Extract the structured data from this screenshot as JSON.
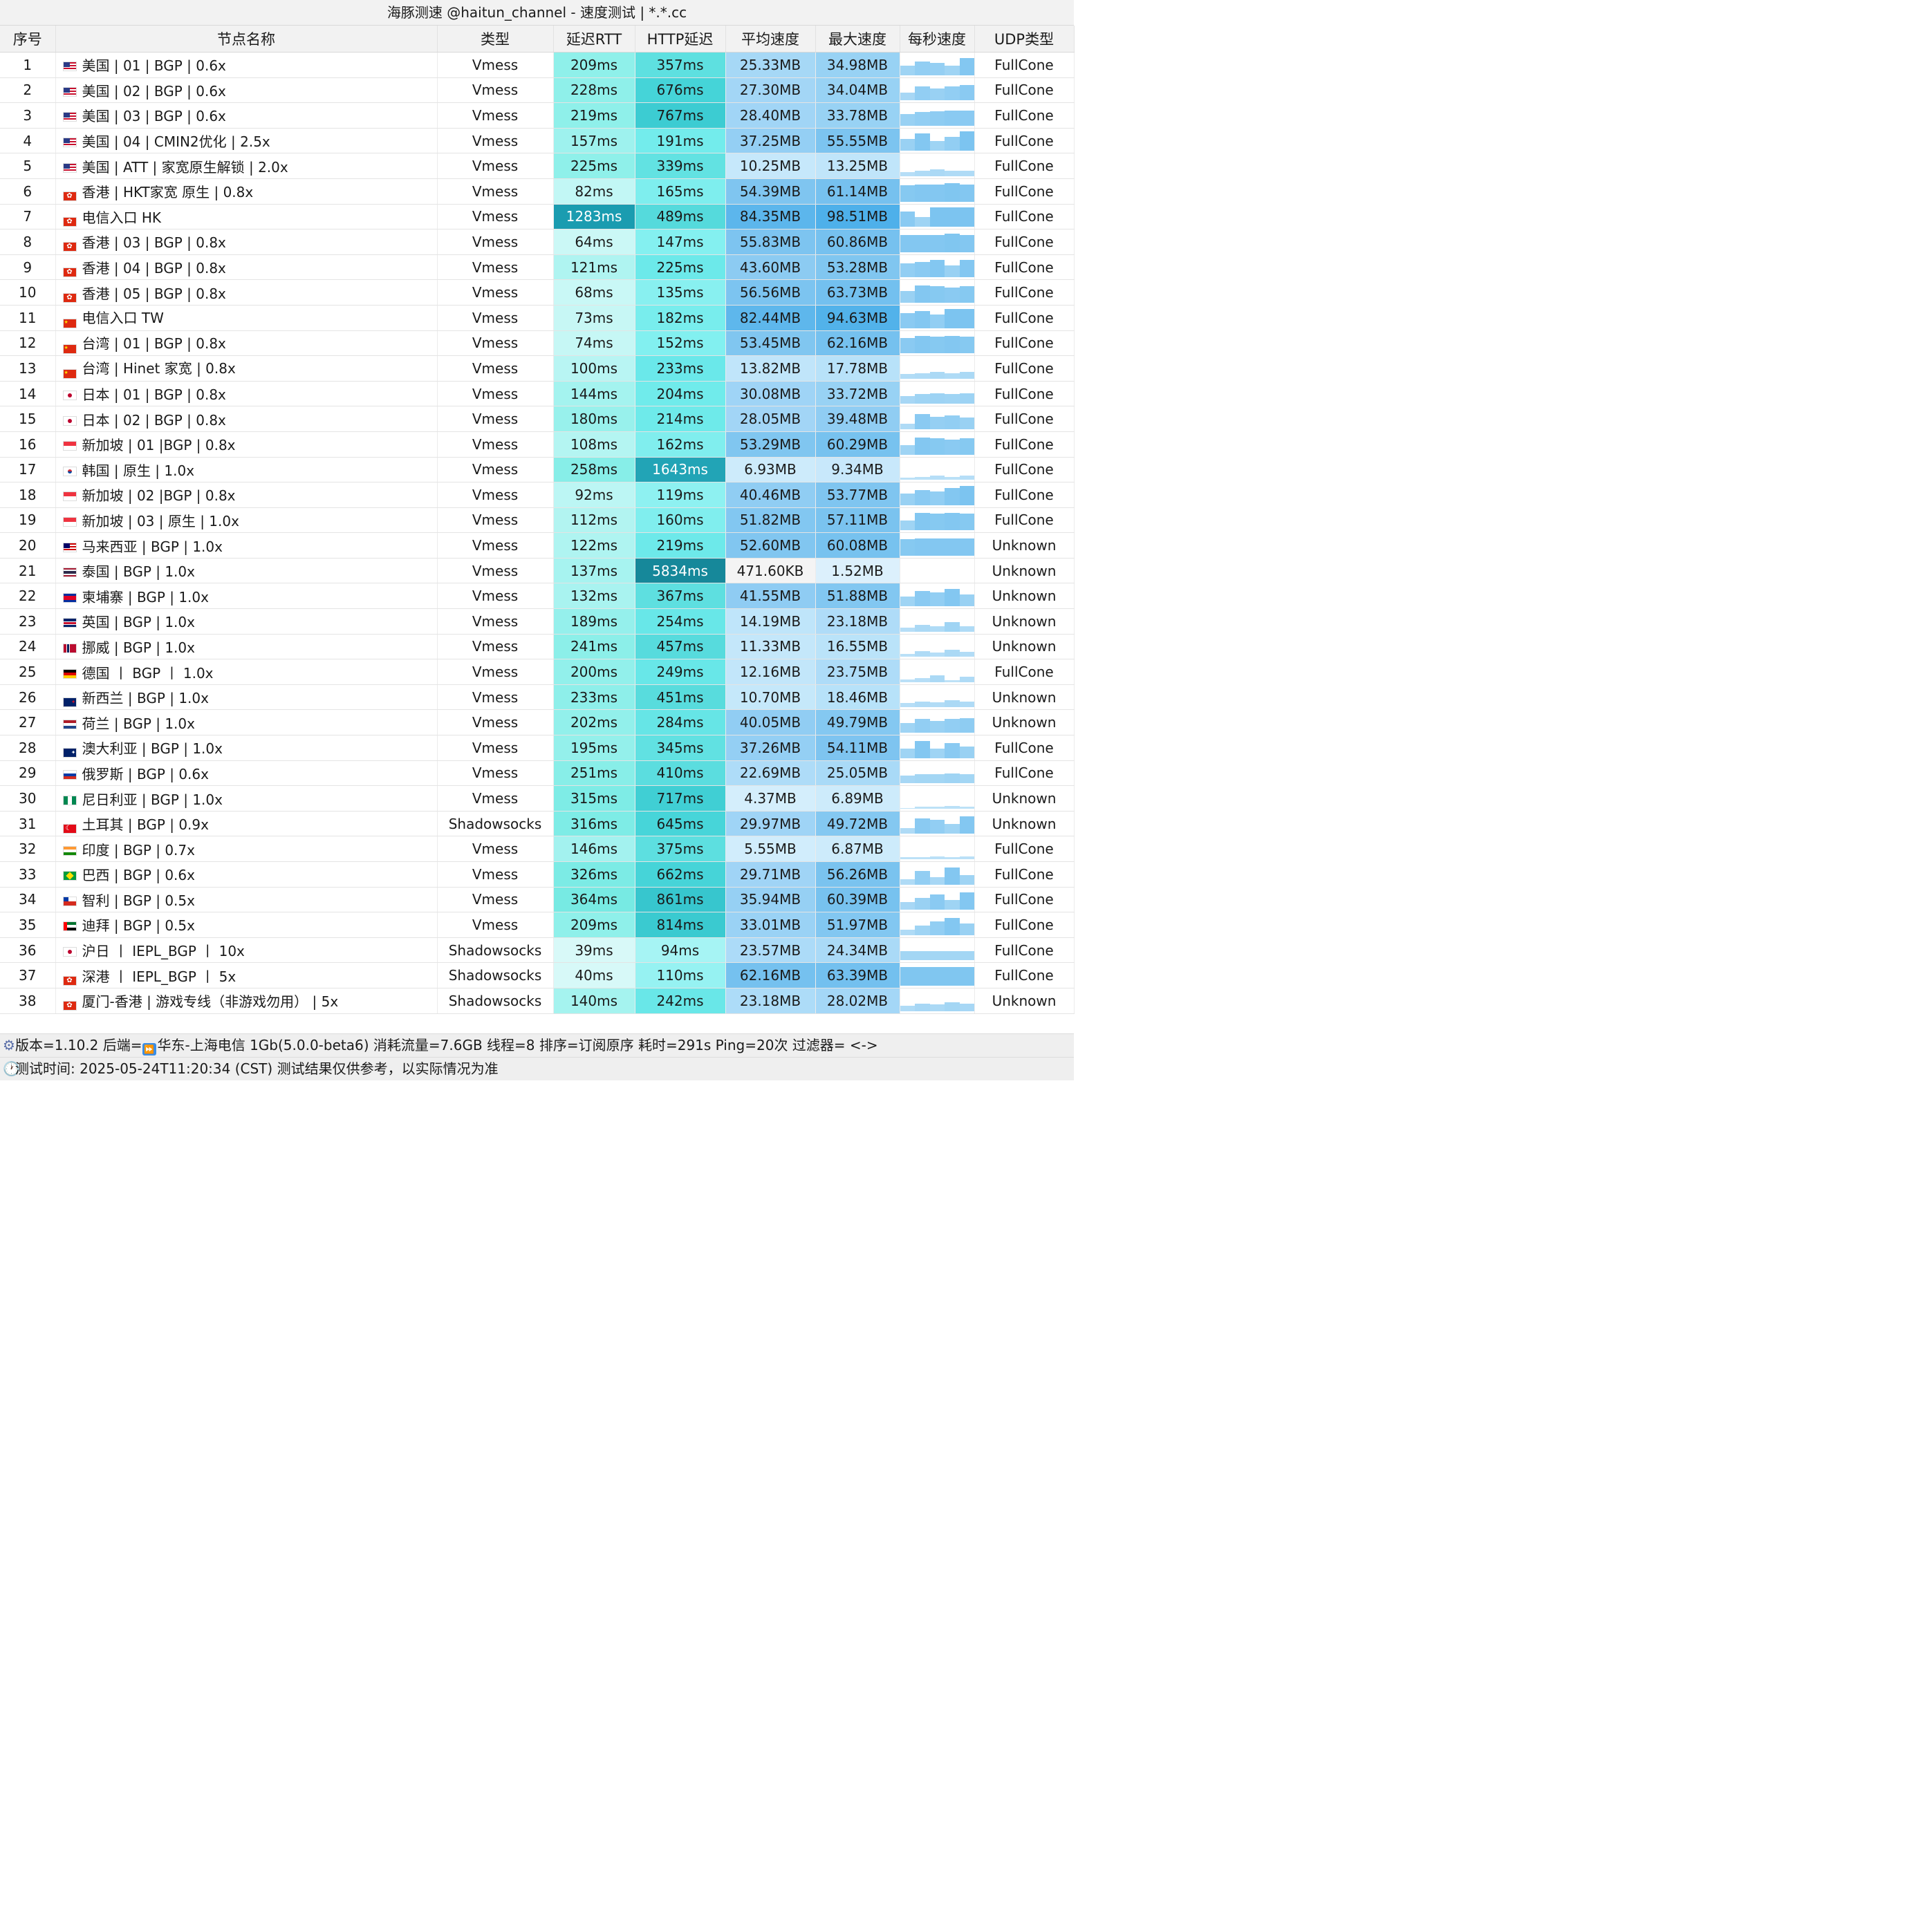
{
  "title": "海豚测速 @haitun_channel - 速度测试 | *.*.cc",
  "headers": [
    "序号",
    "节点名称",
    "类型",
    "延迟RTT",
    "HTTP延迟",
    "平均速度",
    "最大速度",
    "每秒速度",
    "UDP类型"
  ],
  "rows": [
    {
      "idx": "1",
      "flag": "us",
      "name": "美国 | 01 | BGP | 0.6x",
      "type": "Vmess",
      "rtt": "209ms",
      "http": "357ms",
      "avg": "25.33MB",
      "max": "34.98MB",
      "udp": "FullCone",
      "rtt_bg": "#8ff0ea",
      "http_bg": "#5ee0e0",
      "avg_bg": "#a6d8f6",
      "max_bg": "#98d2f4",
      "spark": [
        0.5,
        0.7,
        0.65,
        0.5,
        0.9
      ]
    },
    {
      "idx": "2",
      "flag": "us",
      "name": "美国 | 02 | BGP | 0.6x",
      "type": "Vmess",
      "rtt": "228ms",
      "http": "676ms",
      "avg": "27.30MB",
      "max": "34.04MB",
      "udp": "FullCone",
      "rtt_bg": "#8ff0ea",
      "http_bg": "#45d4d8",
      "avg_bg": "#a3d6f6",
      "max_bg": "#98d2f4",
      "spark": [
        0.4,
        0.7,
        0.6,
        0.7,
        0.8
      ]
    },
    {
      "idx": "3",
      "flag": "us",
      "name": "美国 | 03 | BGP | 0.6x",
      "type": "Vmess",
      "rtt": "219ms",
      "http": "767ms",
      "avg": "28.40MB",
      "max": "33.78MB",
      "udp": "FullCone",
      "rtt_bg": "#8ff0ea",
      "http_bg": "#3cccd2",
      "avg_bg": "#a1d5f6",
      "max_bg": "#98d2f4",
      "spark": [
        0.6,
        0.7,
        0.75,
        0.8,
        0.8
      ]
    },
    {
      "idx": "4",
      "flag": "us",
      "name": "美国 | 04 | CMIN2优化 | 2.5x",
      "type": "Vmess",
      "rtt": "157ms",
      "http": "191ms",
      "avg": "37.25MB",
      "max": "55.55MB",
      "udp": "FullCone",
      "rtt_bg": "#9ef2ee",
      "http_bg": "#73ecec",
      "avg_bg": "#94cff4",
      "max_bg": "#7cc4f0",
      "spark": [
        0.6,
        0.9,
        0.5,
        0.7,
        1.0
      ]
    },
    {
      "idx": "5",
      "flag": "us",
      "name": "美国 | ATT | 家宽原生解锁 | 2.0x",
      "type": "Vmess",
      "rtt": "225ms",
      "http": "339ms",
      "avg": "10.25MB",
      "max": "13.25MB",
      "udp": "FullCone",
      "rtt_bg": "#8ff0ea",
      "http_bg": "#62e2e2",
      "avg_bg": "#c6e8fb",
      "max_bg": "#c0e5fa",
      "spark": [
        0.2,
        0.3,
        0.35,
        0.3,
        0.3
      ]
    },
    {
      "idx": "6",
      "flag": "hk",
      "name": "香港 | HKT家宽 原生 | 0.8x",
      "type": "Vmess",
      "rtt": "82ms",
      "http": "165ms",
      "avg": "54.39MB",
      "max": "61.14MB",
      "udp": "FullCone",
      "rtt_bg": "#c2f7f5",
      "http_bg": "#7eeeee",
      "avg_bg": "#7fc5f0",
      "max_bg": "#76c1ef",
      "spark": [
        0.85,
        0.9,
        0.9,
        0.95,
        0.9
      ]
    },
    {
      "idx": "7",
      "flag": "hk",
      "name": "电信入口 HK",
      "type": "Vmess",
      "rtt": "1283ms",
      "http": "489ms",
      "avg": "84.35MB",
      "max": "98.51MB",
      "udp": "FullCone",
      "rtt_bg": "#1a9cb0",
      "http_bg": "#55dadc",
      "avg_bg": "#5cb6ec",
      "max_bg": "#4eb0ea",
      "spark": [
        0.8,
        0.5,
        1.0,
        1.0,
        1.0
      ]
    },
    {
      "idx": "8",
      "flag": "hk",
      "name": "香港 | 03 | BGP | 0.8x",
      "type": "Vmess",
      "rtt": "64ms",
      "http": "147ms",
      "avg": "55.83MB",
      "max": "60.86MB",
      "udp": "FullCone",
      "rtt_bg": "#cbf8f6",
      "http_bg": "#84f0f0",
      "avg_bg": "#7dc4f0",
      "max_bg": "#76c1ef",
      "spark": [
        0.9,
        0.9,
        0.9,
        0.95,
        0.9
      ]
    },
    {
      "idx": "9",
      "flag": "hk",
      "name": "香港 | 04 | BGP | 0.8x",
      "type": "Vmess",
      "rtt": "121ms",
      "http": "225ms",
      "avg": "43.60MB",
      "max": "53.28MB",
      "udp": "FullCone",
      "rtt_bg": "#aff4f1",
      "http_bg": "#6ce9ea",
      "avg_bg": "#8ccbf2",
      "max_bg": "#80c6f0",
      "spark": [
        0.7,
        0.8,
        0.9,
        0.6,
        0.9
      ]
    },
    {
      "idx": "10",
      "flag": "hk",
      "name": "香港 | 05 | BGP | 0.8x",
      "type": "Vmess",
      "rtt": "68ms",
      "http": "135ms",
      "avg": "56.56MB",
      "max": "63.73MB",
      "udp": "FullCone",
      "rtt_bg": "#c9f8f6",
      "http_bg": "#88f0f0",
      "avg_bg": "#7cc4f0",
      "max_bg": "#73c0ef",
      "spark": [
        0.6,
        0.9,
        0.85,
        0.8,
        0.85
      ]
    },
    {
      "idx": "11",
      "flag": "cn",
      "name": "电信入口 TW",
      "type": "Vmess",
      "rtt": "73ms",
      "http": "182ms",
      "avg": "82.44MB",
      "max": "94.63MB",
      "udp": "FullCone",
      "rtt_bg": "#c7f7f5",
      "http_bg": "#78eded",
      "avg_bg": "#5eb7ec",
      "max_bg": "#52b2ea",
      "spark": [
        0.8,
        0.9,
        0.7,
        1.0,
        1.0
      ]
    },
    {
      "idx": "12",
      "flag": "cn",
      "name": "台湾 | 01 | BGP | 0.8x",
      "type": "Vmess",
      "rtt": "74ms",
      "http": "152ms",
      "avg": "53.45MB",
      "max": "62.16MB",
      "udp": "FullCone",
      "rtt_bg": "#c6f7f5",
      "http_bg": "#82f0f0",
      "avg_bg": "#80c6f0",
      "max_bg": "#75c1ef",
      "spark": [
        0.8,
        0.9,
        0.85,
        0.9,
        0.85
      ]
    },
    {
      "idx": "13",
      "flag": "cn",
      "name": "台湾 | Hinet 家宽 | 0.8x",
      "type": "Vmess",
      "rtt": "100ms",
      "http": "233ms",
      "avg": "13.82MB",
      "max": "17.78MB",
      "udp": "FullCone",
      "rtt_bg": "#b8f5f3",
      "http_bg": "#6ae8ea",
      "avg_bg": "#c0e5fa",
      "max_bg": "#b8e2f9",
      "spark": [
        0.25,
        0.3,
        0.35,
        0.3,
        0.35
      ]
    },
    {
      "idx": "14",
      "flag": "jp",
      "name": "日本 | 01 | BGP | 0.8x",
      "type": "Vmess",
      "rtt": "144ms",
      "http": "204ms",
      "avg": "30.08MB",
      "max": "33.72MB",
      "udp": "FullCone",
      "rtt_bg": "#a4f3ef",
      "http_bg": "#70ebeb",
      "avg_bg": "#9fd4f6",
      "max_bg": "#98d2f4",
      "spark": [
        0.4,
        0.5,
        0.55,
        0.5,
        0.55
      ]
    },
    {
      "idx": "15",
      "flag": "jp",
      "name": "日本 | 02 | BGP | 0.8x",
      "type": "Vmess",
      "rtt": "180ms",
      "http": "214ms",
      "avg": "28.05MB",
      "max": "39.48MB",
      "udp": "FullCone",
      "rtt_bg": "#98f1ec",
      "http_bg": "#6eeaea",
      "avg_bg": "#a2d5f6",
      "max_bg": "#90cdf3",
      "spark": [
        0.3,
        0.8,
        0.65,
        0.7,
        0.6
      ]
    },
    {
      "idx": "16",
      "flag": "sg",
      "name": "新加坡 | 01 |BGP | 0.8x",
      "type": "Vmess",
      "rtt": "108ms",
      "http": "162ms",
      "avg": "53.29MB",
      "max": "60.29MB",
      "udp": "FullCone",
      "rtt_bg": "#b4f5f2",
      "http_bg": "#80eeee",
      "avg_bg": "#80c6f0",
      "max_bg": "#77c2ef",
      "spark": [
        0.5,
        0.9,
        0.85,
        0.8,
        0.85
      ]
    },
    {
      "idx": "17",
      "flag": "kr",
      "name": "韩国 | 原生 | 1.0x",
      "type": "Vmess",
      "rtt": "258ms",
      "http": "1643ms",
      "avg": "6.93MB",
      "max": "9.34MB",
      "udp": "FullCone",
      "rtt_bg": "#87eee8",
      "http_bg": "#22a4b6",
      "avg_bg": "#cdebfb",
      "max_bg": "#c8e8fb",
      "spark": [
        0.1,
        0.15,
        0.2,
        0.15,
        0.2
      ]
    },
    {
      "idx": "18",
      "flag": "sg",
      "name": "新加坡 | 02 |BGP | 0.8x",
      "type": "Vmess",
      "rtt": "92ms",
      "http": "119ms",
      "avg": "40.46MB",
      "max": "53.77MB",
      "udp": "FullCone",
      "rtt_bg": "#bcf6f4",
      "http_bg": "#8ef1f1",
      "avg_bg": "#90cdf3",
      "max_bg": "#7fc5f0",
      "spark": [
        0.6,
        0.8,
        0.7,
        0.9,
        1.0
      ]
    },
    {
      "idx": "19",
      "flag": "sg",
      "name": "新加坡 | 03 | 原生 | 1.0x",
      "type": "Vmess",
      "rtt": "112ms",
      "http": "160ms",
      "avg": "51.82MB",
      "max": "57.11MB",
      "udp": "FullCone",
      "rtt_bg": "#b2f4f1",
      "http_bg": "#80eeee",
      "avg_bg": "#82c7f1",
      "max_bg": "#7ac3ef",
      "spark": [
        0.5,
        0.9,
        0.85,
        0.9,
        0.85
      ]
    },
    {
      "idx": "20",
      "flag": "my",
      "name": "马来西亚 | BGP | 1.0x",
      "type": "Vmess",
      "rtt": "122ms",
      "http": "219ms",
      "avg": "52.60MB",
      "max": "60.08MB",
      "udp": "Unknown",
      "rtt_bg": "#aff4f1",
      "http_bg": "#6de9ea",
      "avg_bg": "#81c6f0",
      "max_bg": "#77c2ef",
      "spark": [
        0.85,
        0.9,
        0.9,
        0.9,
        0.9
      ]
    },
    {
      "idx": "21",
      "flag": "th",
      "name": "泰国 | BGP | 1.0x",
      "type": "Vmess",
      "rtt": "137ms",
      "http": "5834ms",
      "avg": "471.60KB",
      "max": "1.52MB",
      "udp": "Unknown",
      "rtt_bg": "#a7f3f0",
      "http_bg": "#16889a",
      "avg_bg": "#f4f4f4",
      "max_bg": "#dcf0fc",
      "spark": [
        0,
        0,
        0,
        0,
        0
      ]
    },
    {
      "idx": "22",
      "flag": "kh",
      "name": "柬埔寨 | BGP | 1.0x",
      "type": "Vmess",
      "rtt": "132ms",
      "http": "367ms",
      "avg": "41.55MB",
      "max": "51.88MB",
      "udp": "Unknown",
      "rtt_bg": "#a9f3f0",
      "http_bg": "#5edfe0",
      "avg_bg": "#8fccf3",
      "max_bg": "#82c7f1",
      "spark": [
        0.5,
        0.8,
        0.7,
        0.9,
        0.6
      ]
    },
    {
      "idx": "23",
      "flag": "gb",
      "name": "英国 | BGP | 1.0x",
      "type": "Vmess",
      "rtt": "189ms",
      "http": "254ms",
      "avg": "14.19MB",
      "max": "23.18MB",
      "udp": "Unknown",
      "rtt_bg": "#95f0ec",
      "http_bg": "#68e7e8",
      "avg_bg": "#bfe5fa",
      "max_bg": "#afdcf8",
      "spark": [
        0.2,
        0.35,
        0.3,
        0.5,
        0.3
      ]
    },
    {
      "idx": "24",
      "flag": "no",
      "name": "挪威 | BGP | 1.0x",
      "type": "Vmess",
      "rtt": "241ms",
      "http": "457ms",
      "avg": "11.33MB",
      "max": "16.55MB",
      "udp": "Unknown",
      "rtt_bg": "#8cefe9",
      "http_bg": "#57dbdd",
      "avg_bg": "#c4e7fa",
      "max_bg": "#bae3f9",
      "spark": [
        0.15,
        0.3,
        0.2,
        0.35,
        0.25
      ]
    },
    {
      "idx": "25",
      "flag": "de",
      "name": "德国 丨 BGP 丨 1.0x",
      "type": "Vmess",
      "rtt": "200ms",
      "http": "249ms",
      "avg": "12.16MB",
      "max": "23.75MB",
      "udp": "FullCone",
      "rtt_bg": "#92f0eb",
      "http_bg": "#68e7e8",
      "avg_bg": "#c2e6fa",
      "max_bg": "#aedcf8",
      "spark": [
        0.15,
        0.2,
        0.35,
        0.1,
        0.3
      ]
    },
    {
      "idx": "26",
      "flag": "nz",
      "name": "新西兰 | BGP | 1.0x",
      "type": "Vmess",
      "rtt": "233ms",
      "http": "451ms",
      "avg": "10.70MB",
      "max": "18.46MB",
      "udp": "Unknown",
      "rtt_bg": "#8eefea",
      "http_bg": "#58dcdd",
      "avg_bg": "#c5e8fa",
      "max_bg": "#b7e2f9",
      "spark": [
        0.2,
        0.3,
        0.25,
        0.35,
        0.3
      ]
    },
    {
      "idx": "27",
      "flag": "nl",
      "name": "荷兰 | BGP | 1.0x",
      "type": "Vmess",
      "rtt": "202ms",
      "http": "284ms",
      "avg": "40.05MB",
      "max": "49.79MB",
      "udp": "Unknown",
      "rtt_bg": "#92f0eb",
      "http_bg": "#66e5e6",
      "avg_bg": "#91cdf3",
      "max_bg": "#84c8f1",
      "spark": [
        0.5,
        0.7,
        0.6,
        0.7,
        0.75
      ]
    },
    {
      "idx": "28",
      "flag": "au",
      "name": "澳大利亚 | BGP | 1.0x",
      "type": "Vmess",
      "rtt": "195ms",
      "http": "345ms",
      "avg": "37.26MB",
      "max": "54.11MB",
      "udp": "FullCone",
      "rtt_bg": "#94f0eb",
      "http_bg": "#61e1e2",
      "avg_bg": "#94cff4",
      "max_bg": "#7ec4f0",
      "spark": [
        0.5,
        0.9,
        0.5,
        0.8,
        0.6
      ]
    },
    {
      "idx": "29",
      "flag": "ru",
      "name": "俄罗斯 | BGP | 0.6x",
      "type": "Vmess",
      "rtt": "251ms",
      "http": "410ms",
      "avg": "22.69MB",
      "max": "25.05MB",
      "udp": "FullCone",
      "rtt_bg": "#88eee8",
      "http_bg": "#5bdddf",
      "avg_bg": "#aedcf8",
      "max_bg": "#a9daf7",
      "spark": [
        0.4,
        0.45,
        0.45,
        0.5,
        0.45
      ]
    },
    {
      "idx": "30",
      "flag": "ng",
      "name": "尼日利亚 | BGP | 1.0x",
      "type": "Vmess",
      "rtt": "315ms",
      "http": "717ms",
      "avg": "4.37MB",
      "max": "6.89MB",
      "udp": "Unknown",
      "rtt_bg": "#7eece6",
      "http_bg": "#40cfd4",
      "avg_bg": "#d4eefc",
      "max_bg": "#cdebfb",
      "spark": [
        0.05,
        0.1,
        0.1,
        0.15,
        0.1
      ]
    },
    {
      "idx": "31",
      "flag": "tr",
      "name": "土耳其 | BGP | 0.9x",
      "type": "Shadowsocks",
      "rtt": "316ms",
      "http": "645ms",
      "avg": "29.97MB",
      "max": "49.72MB",
      "udp": "Unknown",
      "rtt_bg": "#7eece6",
      "http_bg": "#47d5d9",
      "avg_bg": "#9fd4f6",
      "max_bg": "#84c8f1",
      "spark": [
        0.3,
        0.8,
        0.7,
        0.5,
        0.9
      ]
    },
    {
      "idx": "32",
      "flag": "in",
      "name": "印度 | BGP | 0.7x",
      "type": "Vmess",
      "rtt": "146ms",
      "http": "375ms",
      "avg": "5.55MB",
      "max": "6.87MB",
      "udp": "FullCone",
      "rtt_bg": "#a3f2ef",
      "http_bg": "#5ddfe0",
      "avg_bg": "#d1edfc",
      "max_bg": "#cdebfb",
      "spark": [
        0.1,
        0.1,
        0.15,
        0.1,
        0.15
      ]
    },
    {
      "idx": "33",
      "flag": "br",
      "name": "巴西 | BGP | 0.6x",
      "type": "Vmess",
      "rtt": "326ms",
      "http": "662ms",
      "avg": "29.71MB",
      "max": "56.26MB",
      "udp": "FullCone",
      "rtt_bg": "#7cebe5",
      "http_bg": "#46d4d8",
      "avg_bg": "#a0d4f6",
      "max_bg": "#7ac3ef",
      "spark": [
        0.3,
        0.7,
        0.4,
        0.9,
        0.5
      ]
    },
    {
      "idx": "34",
      "flag": "cl",
      "name": "智利 | BGP | 0.5x",
      "type": "Vmess",
      "rtt": "364ms",
      "http": "861ms",
      "avg": "35.94MB",
      "max": "60.39MB",
      "udp": "FullCone",
      "rtt_bg": "#77eae3",
      "http_bg": "#37c6ce",
      "avg_bg": "#96d0f4",
      "max_bg": "#77c2ef",
      "spark": [
        0.4,
        0.6,
        0.8,
        0.5,
        0.9
      ]
    },
    {
      "idx": "35",
      "flag": "ae",
      "name": "迪拜 | BGP | 0.5x",
      "type": "Vmess",
      "rtt": "209ms",
      "http": "814ms",
      "avg": "33.01MB",
      "max": "51.97MB",
      "udp": "FullCone",
      "rtt_bg": "#8ff0ea",
      "http_bg": "#3acad0",
      "avg_bg": "#9ad2f5",
      "max_bg": "#82c7f1",
      "spark": [
        0.3,
        0.5,
        0.7,
        0.9,
        0.6
      ]
    },
    {
      "idx": "36",
      "flag": "jp",
      "name": "沪日 丨 IEPL_BGP 丨 10x",
      "type": "Shadowsocks",
      "rtt": "39ms",
      "http": "94ms",
      "avg": "23.57MB",
      "max": "24.34MB",
      "udp": "FullCone",
      "rtt_bg": "#d8f9f8",
      "http_bg": "#a6f4f4",
      "avg_bg": "#acdbf8",
      "max_bg": "#aadaf7",
      "spark": [
        0.45,
        0.45,
        0.45,
        0.45,
        0.45
      ]
    },
    {
      "idx": "37",
      "flag": "hk",
      "name": "深港 丨 IEPL_BGP 丨 5x",
      "type": "Shadowsocks",
      "rtt": "40ms",
      "http": "110ms",
      "avg": "62.16MB",
      "max": "63.39MB",
      "udp": "FullCone",
      "rtt_bg": "#d7f9f8",
      "http_bg": "#96f2f2",
      "avg_bg": "#75c1ef",
      "max_bg": "#73c0ef",
      "spark": [
        0.95,
        0.95,
        0.95,
        0.95,
        0.95
      ]
    },
    {
      "idx": "38",
      "flag": "hk",
      "name": "厦门-香港 | 游戏专线（非游戏勿用） | 5x",
      "type": "Shadowsocks",
      "rtt": "140ms",
      "http": "242ms",
      "avg": "23.18MB",
      "max": "28.02MB",
      "udp": "Unknown",
      "rtt_bg": "#a5f3ef",
      "http_bg": "#69e7e8",
      "avg_bg": "#addcf8",
      "max_bg": "#a4d7f7",
      "spark": [
        0.3,
        0.4,
        0.35,
        0.45,
        0.4
      ]
    }
  ],
  "footer": {
    "line1_a": "版本=1.10.2  后端=",
    "line1_b": "华东-上海电信 1Gb(5.0.0-beta6) 消耗流量=7.6GB  线程=8  排序=订阅原序  耗时=291s  Ping=20次  过滤器= <->",
    "line2": "测试时间: 2025-05-24T11:20:34 (CST)  测试结果仅供参考，以实际情况为准",
    "icon1": "gear-icon",
    "icon2": "clock-icon",
    "icon3": "fast-forward-icon"
  },
  "colors": {
    "header_bg": "#f2f2f2",
    "spark_bar": "#7cc4f0"
  }
}
